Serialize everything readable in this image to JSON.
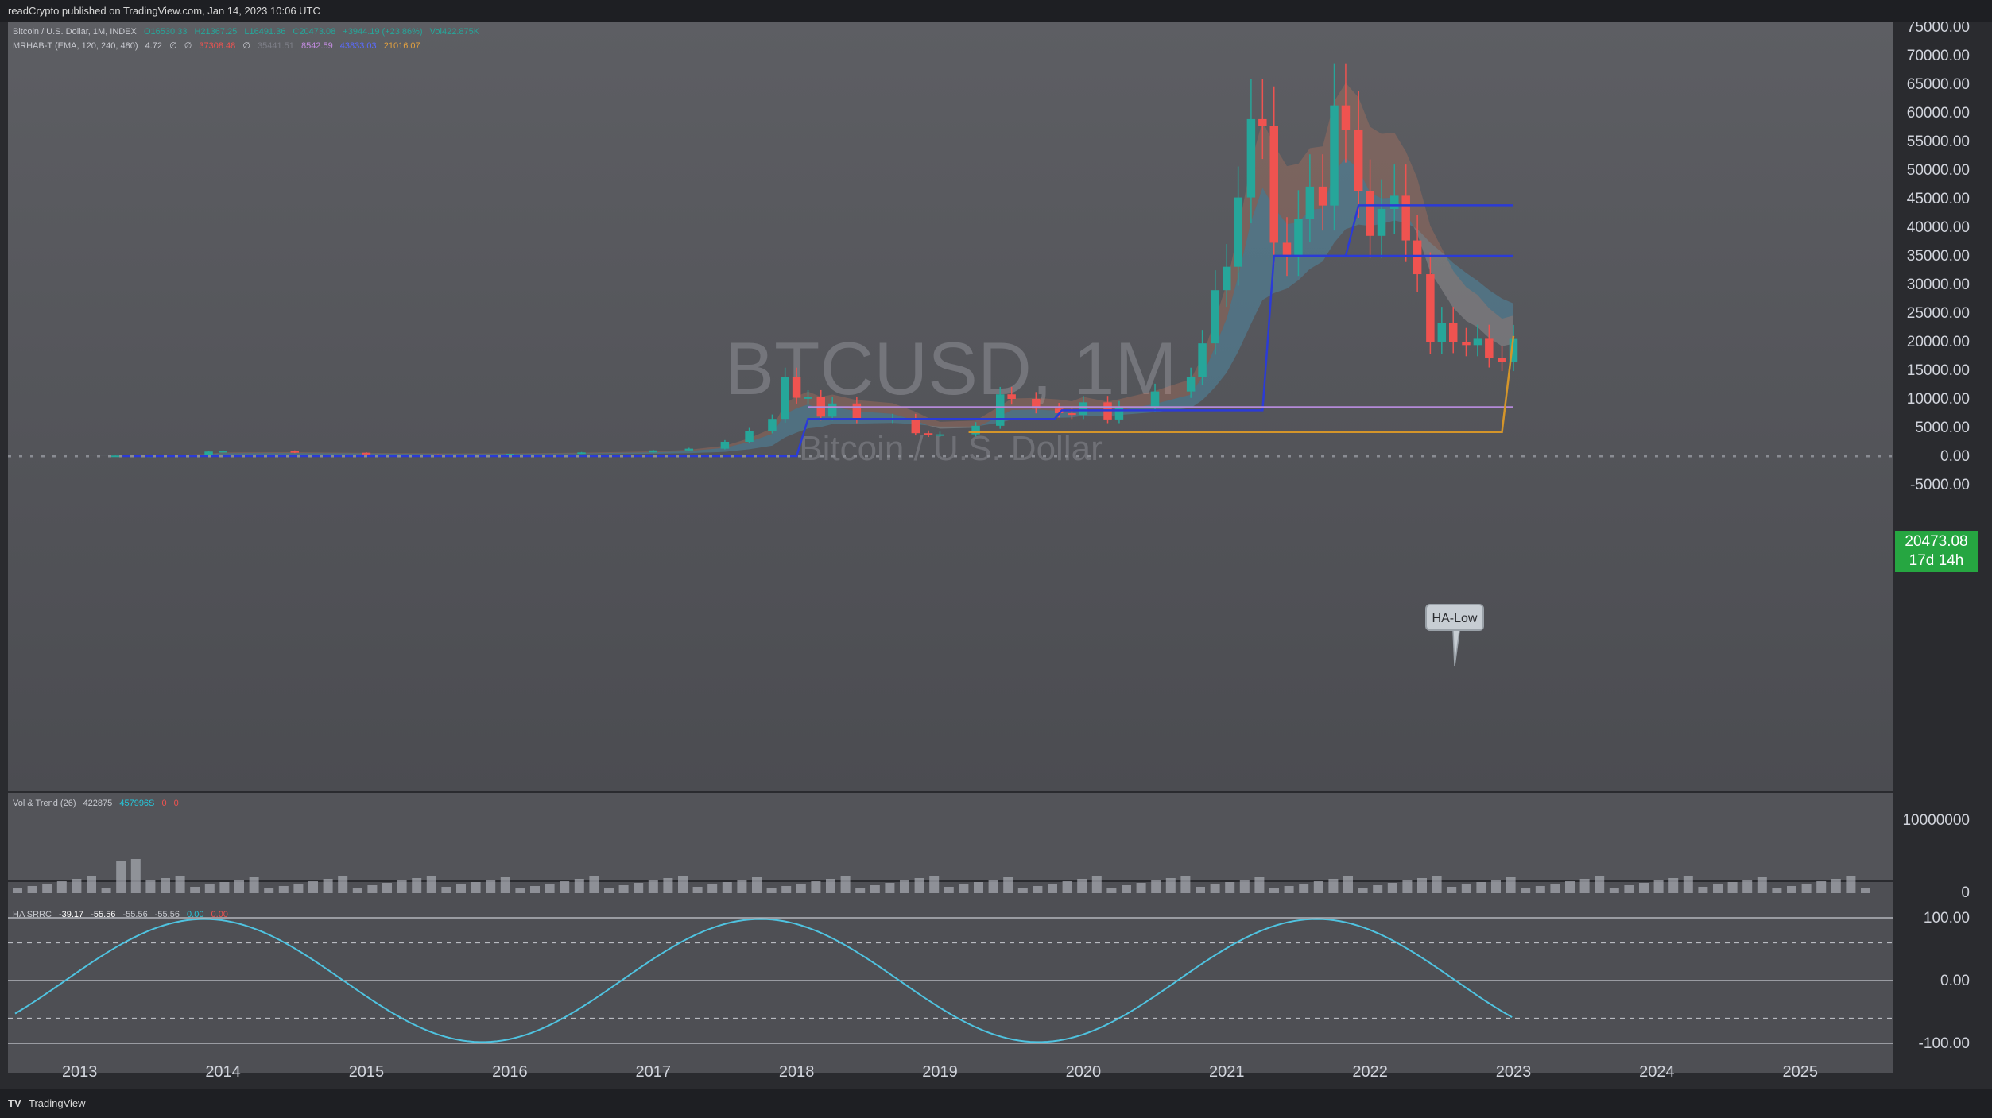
{
  "publisher_line": "readCrypto published on TradingView.com, Jan 14, 2023 10:06 UTC",
  "footer": {
    "logo": "TV",
    "brand": "TradingView"
  },
  "watermark": {
    "symbol": "BTCUSD, 1M",
    "name": "Bitcoin / U.S. Dollar"
  },
  "legend_main": {
    "title": "Bitcoin / U.S. Dollar, 1M, INDEX",
    "o": "O16530.33",
    "h": "H21367.25",
    "l": "L16491.36",
    "c": "C20473.08",
    "chg": "+3944.19 (+23.86%)",
    "vol": "Vol422.875K"
  },
  "legend_indicator": {
    "name": "MRHAB-T (EMA, 120, 240, 480)",
    "v1": "4.72",
    "v2": "∅",
    "v3": "∅",
    "v4": "37308.48",
    "v5": "∅",
    "v6": "35441.51",
    "v7": "8542.59",
    "v8": "43833.03",
    "v9": "21016.07"
  },
  "legend_vol": {
    "name": "Vol & Trend (26)",
    "v1": "422875",
    "v2": "457996S",
    "v3": "0",
    "v4": "0"
  },
  "legend_srrc": {
    "name": "HA SRRC",
    "v1": "-39.17",
    "v2": "-55.56",
    "v3": "-55.56",
    "v4": "-55.56",
    "v5": "0.00",
    "v6": "0.00"
  },
  "current_price": {
    "value": "20473.08",
    "countdown": "17d 14h"
  },
  "ha_low_label": "HA-Low",
  "colors": {
    "up": "#26a69a",
    "down": "#ef5350",
    "price_tag": "#26a641",
    "blue_line": "#2b3bd6",
    "orange_line": "#d4952a",
    "purple_line": "#b48ad8"
  },
  "chart_data": [
    {
      "type": "candlestick",
      "title": "",
      "interval": "1M",
      "y_ticks": [
        "-5000.00",
        "0.00",
        "5000.00",
        "10000.00",
        "15000.00",
        "20000.00",
        "25000.00",
        "30000.00",
        "35000.00",
        "40000.00",
        "45000.00",
        "50000.00",
        "55000.00",
        "60000.00",
        "65000.00",
        "70000.00",
        "75000.00"
      ],
      "ylim": [
        -5000,
        75000
      ],
      "x_ticks": [
        "2013",
        "2014",
        "2015",
        "2016",
        "2017",
        "2018",
        "2019",
        "2020",
        "2021",
        "2022",
        "2023",
        "2024",
        "2025"
      ],
      "xlim": [
        2012.5,
        2025.65
      ],
      "current_close": 20473.08,
      "monthly_close_approx": [
        [
          2013.0,
          20
        ],
        [
          2013.25,
          100
        ],
        [
          2013.5,
          100
        ],
        [
          2013.9,
          800
        ],
        [
          2014.0,
          900
        ],
        [
          2014.5,
          600
        ],
        [
          2015.0,
          300
        ],
        [
          2015.5,
          250
        ],
        [
          2016.0,
          400
        ],
        [
          2016.5,
          650
        ],
        [
          2017.0,
          1000
        ],
        [
          2017.25,
          1300
        ],
        [
          2017.5,
          2500
        ],
        [
          2017.67,
          4400
        ],
        [
          2017.83,
          6500
        ],
        [
          2017.92,
          13800
        ],
        [
          2018.0,
          10200
        ],
        [
          2018.08,
          10300
        ],
        [
          2018.17,
          6900
        ],
        [
          2018.25,
          9200
        ],
        [
          2018.42,
          6400
        ],
        [
          2018.67,
          6600
        ],
        [
          2018.83,
          4000
        ],
        [
          2018.92,
          3700
        ],
        [
          2019.0,
          3800
        ],
        [
          2019.25,
          5300
        ],
        [
          2019.42,
          10800
        ],
        [
          2019.5,
          10000
        ],
        [
          2019.67,
          8300
        ],
        [
          2019.83,
          7500
        ],
        [
          2019.92,
          7200
        ],
        [
          2020.0,
          9400
        ],
        [
          2020.17,
          6400
        ],
        [
          2020.25,
          8600
        ],
        [
          2020.5,
          11300
        ],
        [
          2020.75,
          13800
        ],
        [
          2020.83,
          19700
        ],
        [
          2020.92,
          29000
        ],
        [
          2021.0,
          33100
        ],
        [
          2021.08,
          45200
        ],
        [
          2021.17,
          58900
        ],
        [
          2021.25,
          57700
        ],
        [
          2021.33,
          37300
        ],
        [
          2021.42,
          35000
        ],
        [
          2021.5,
          41500
        ],
        [
          2021.58,
          47100
        ],
        [
          2021.67,
          43800
        ],
        [
          2021.75,
          61300
        ],
        [
          2021.83,
          57000
        ],
        [
          2021.92,
          46300
        ],
        [
          2022.0,
          38500
        ],
        [
          2022.08,
          43200
        ],
        [
          2022.17,
          45500
        ],
        [
          2022.25,
          37700
        ],
        [
          2022.33,
          31800
        ],
        [
          2022.42,
          19900
        ],
        [
          2022.5,
          23300
        ],
        [
          2022.58,
          20000
        ],
        [
          2022.67,
          19400
        ],
        [
          2022.75,
          20500
        ],
        [
          2022.83,
          17200
        ],
        [
          2022.92,
          16500
        ],
        [
          2023.0,
          20473
        ]
      ],
      "levels": [
        {
          "name": "blue_step_high",
          "value": 43833
        },
        {
          "name": "blue_step_mid",
          "value": 35000
        },
        {
          "name": "purple",
          "value": 8542
        },
        {
          "name": "orange",
          "value": 4200
        }
      ]
    },
    {
      "type": "bar",
      "title": "Vol & Trend (26)",
      "y_ticks": [
        "10000000",
        "0"
      ],
      "ylim": [
        0,
        10000000
      ]
    },
    {
      "type": "line",
      "title": "HA SRRC",
      "y_ticks": [
        "100.00",
        "0.00",
        "-100.00"
      ],
      "ylim": [
        -100,
        100
      ],
      "last_value": -55.56
    }
  ]
}
